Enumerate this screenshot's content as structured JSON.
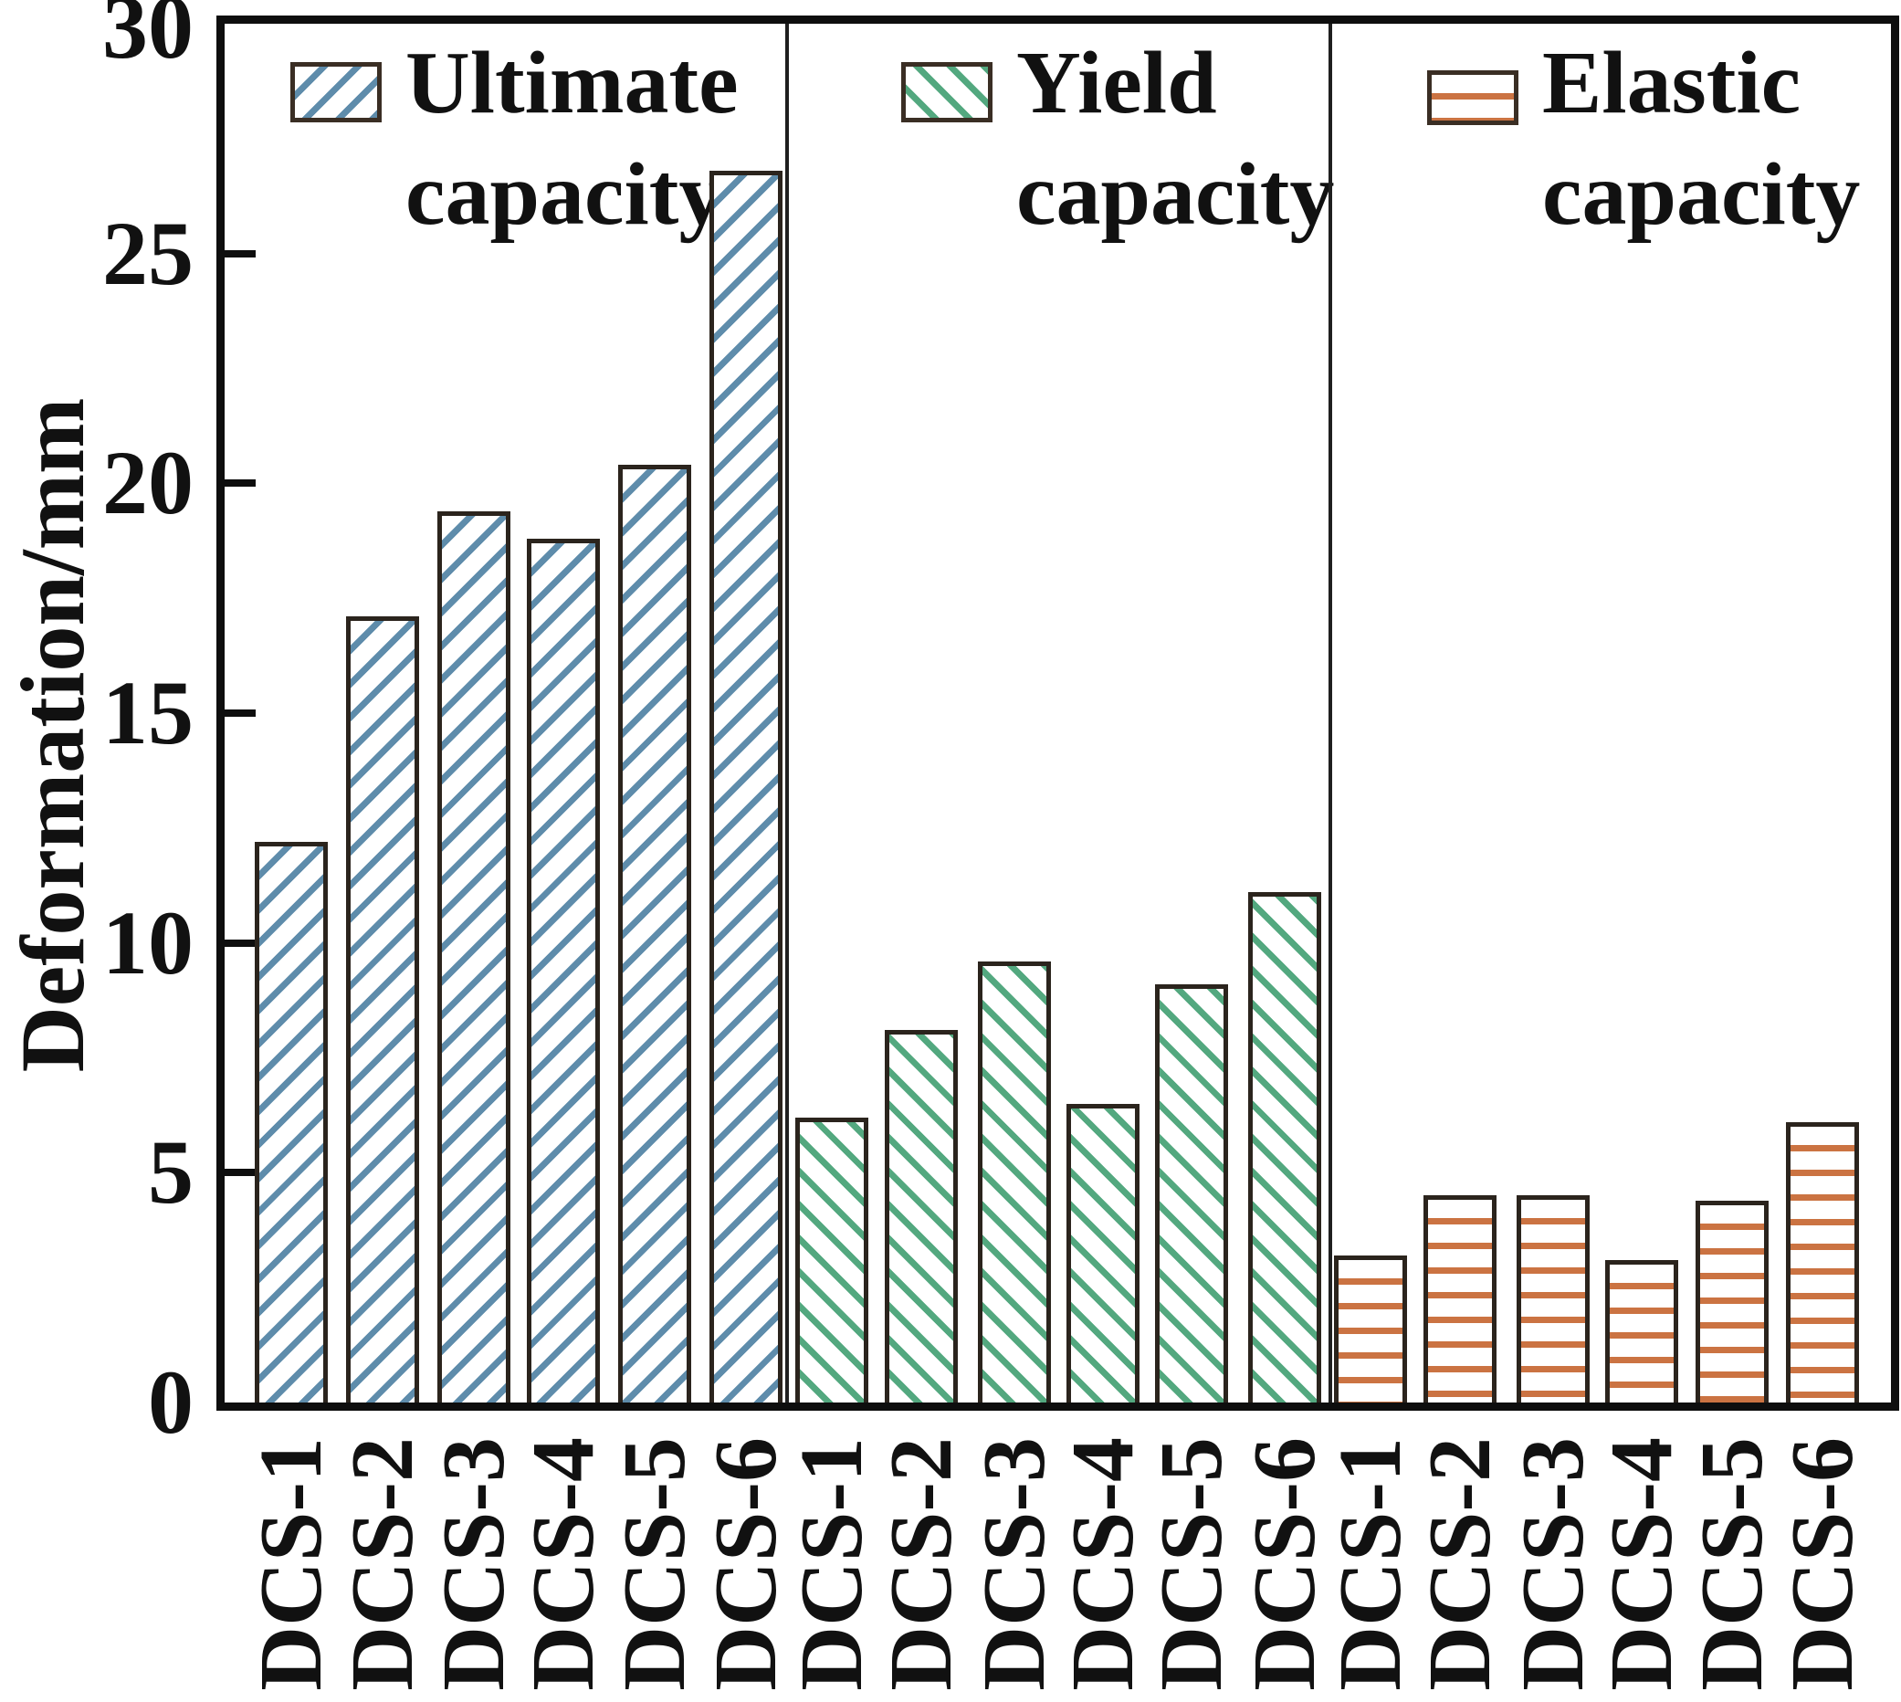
{
  "chart_data": {
    "type": "bar",
    "title": "",
    "ylabel": "Deformation/mm",
    "xlabel": "",
    "ylim": [
      0,
      30
    ],
    "yticks": [
      "0",
      "5",
      "10",
      "15",
      "20",
      "25",
      "30"
    ],
    "grid": false,
    "legend_position": "top-inside",
    "categories": [
      "DCS-1",
      "DCS-2",
      "DCS-3",
      "DCS-4",
      "DCS-5",
      "DCS-6"
    ],
    "series": [
      {
        "name": "Ultimate capacity",
        "pattern": "diagonal-up-hatch",
        "color": "#5e8cab",
        "values": [
          12.2,
          17.1,
          19.4,
          18.8,
          20.4,
          26.8
        ]
      },
      {
        "name": "Yield capacity",
        "pattern": "diagonal-down-hatch",
        "color": "#53a87f",
        "values": [
          6.2,
          8.1,
          9.6,
          6.5,
          9.1,
          11.1
        ]
      },
      {
        "name": "Elastic capacity",
        "pattern": "horizontal-lines",
        "color": "#cb7342",
        "values": [
          3.2,
          4.5,
          4.5,
          3.1,
          4.4,
          6.1
        ]
      }
    ],
    "legend": [
      {
        "lines": [
          "Ultimate",
          "capacity"
        ]
      },
      {
        "lines": [
          "Yield",
          "capacity"
        ]
      },
      {
        "lines": [
          "Elastic",
          "capacity"
        ]
      }
    ],
    "colors": {
      "ultimate_hatch": "#5e8cab",
      "yield_hatch": "#53a87f",
      "elastic_hatch": "#cb7342",
      "bar_border": "#2b241d",
      "axis": "#0e0e0e"
    }
  }
}
